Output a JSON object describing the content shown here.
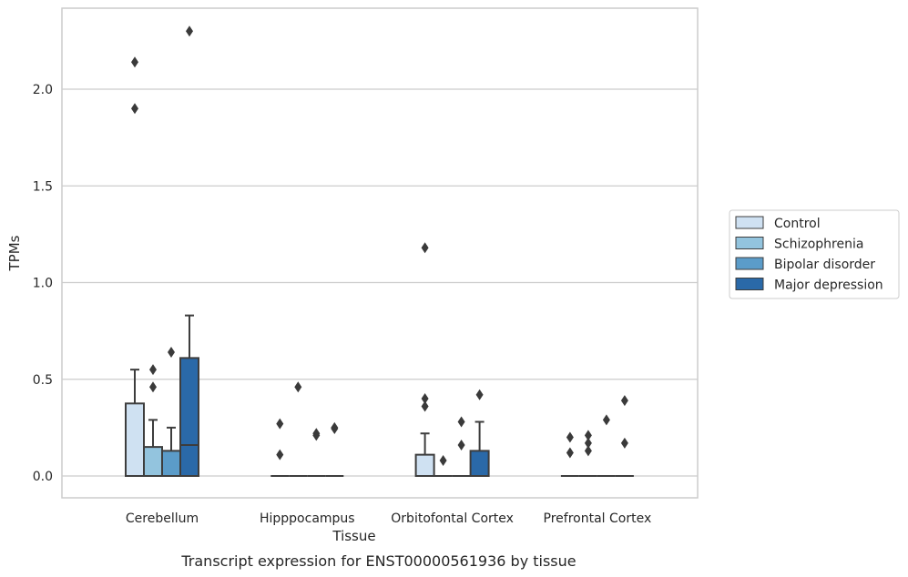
{
  "chart_data": {
    "type": "box",
    "xlabel": "Tissue",
    "ylabel": "TPMs",
    "caption": "Transcript expression for ENST00000561936 by tissue",
    "ylim": [
      -0.11,
      2.42
    ],
    "yticks": [
      "0.0",
      "0.5",
      "1.0",
      "1.5",
      "2.0"
    ],
    "grid": "horizontal",
    "legend_position": "right",
    "categories": [
      "Cerebellum",
      "Hipppocampus",
      "Orbitofontal Cortex",
      "Prefrontal Cortex"
    ],
    "series": [
      {
        "name": "Control",
        "color": "#cfe1f2",
        "boxes": [
          {
            "q1": 0,
            "median": 0,
            "q3": 0.375,
            "whisker_low": 0,
            "whisker_high": 0.55,
            "outliers": [
              1.9,
              2.14
            ]
          },
          {
            "q1": 0,
            "median": 0,
            "q3": 0,
            "whisker_low": 0,
            "whisker_high": 0,
            "outliers": [
              0.11,
              0.27
            ]
          },
          {
            "q1": 0,
            "median": 0,
            "q3": 0.11,
            "whisker_low": 0,
            "whisker_high": 0.22,
            "outliers": [
              0.36,
              0.4,
              1.18
            ]
          },
          {
            "q1": 0,
            "median": 0,
            "q3": 0,
            "whisker_low": 0,
            "whisker_high": 0,
            "outliers": [
              0.12,
              0.2
            ]
          }
        ]
      },
      {
        "name": "Schizophrenia",
        "color": "#93c4de",
        "boxes": [
          {
            "q1": 0,
            "median": 0,
            "q3": 0.15,
            "whisker_low": 0,
            "whisker_high": 0.29,
            "outliers": [
              0.46,
              0.55
            ]
          },
          {
            "q1": 0,
            "median": 0,
            "q3": 0,
            "whisker_low": 0,
            "whisker_high": 0,
            "outliers": [
              0.46
            ]
          },
          {
            "q1": 0,
            "median": 0,
            "q3": 0,
            "whisker_low": 0,
            "whisker_high": 0,
            "outliers": [
              0.08
            ]
          },
          {
            "q1": 0,
            "median": 0,
            "q3": 0,
            "whisker_low": 0,
            "whisker_high": 0,
            "outliers": [
              0.13,
              0.17,
              0.21
            ]
          }
        ]
      },
      {
        "name": "Bipolar disorder",
        "color": "#5b9cc9",
        "boxes": [
          {
            "q1": 0,
            "median": 0,
            "q3": 0.13,
            "whisker_low": 0,
            "whisker_high": 0.25,
            "outliers": [
              0.64
            ]
          },
          {
            "q1": 0,
            "median": 0,
            "q3": 0,
            "whisker_low": 0,
            "whisker_high": 0,
            "outliers": [
              0.21,
              0.22
            ]
          },
          {
            "q1": 0,
            "median": 0,
            "q3": 0,
            "whisker_low": 0,
            "whisker_high": 0,
            "outliers": [
              0.16,
              0.28
            ]
          },
          {
            "q1": 0,
            "median": 0,
            "q3": 0,
            "whisker_low": 0,
            "whisker_high": 0,
            "outliers": [
              0.29
            ]
          }
        ]
      },
      {
        "name": "Major depression",
        "color": "#2a69a8",
        "boxes": [
          {
            "q1": 0,
            "median": 0.16,
            "q3": 0.61,
            "whisker_low": 0,
            "whisker_high": 0.83,
            "outliers": [
              2.3
            ]
          },
          {
            "q1": 0,
            "median": 0,
            "q3": 0,
            "whisker_low": 0,
            "whisker_high": 0,
            "outliers": [
              0.245,
              0.25
            ]
          },
          {
            "q1": 0,
            "median": 0,
            "q3": 0.13,
            "whisker_low": 0,
            "whisker_high": 0.28,
            "outliers": [
              0.42
            ]
          },
          {
            "q1": 0,
            "median": 0,
            "q3": 0,
            "whisker_low": 0,
            "whisker_high": 0,
            "outliers": [
              0.17,
              0.39
            ]
          }
        ]
      }
    ]
  }
}
